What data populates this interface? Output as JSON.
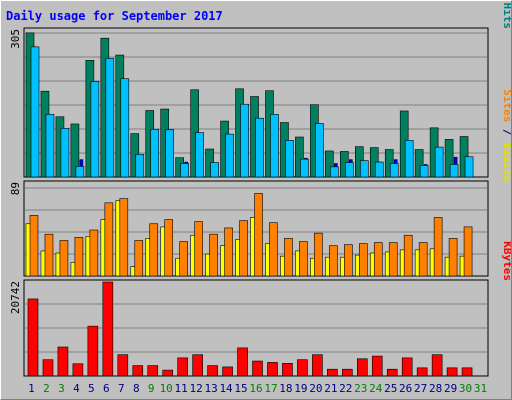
{
  "chart_data": {
    "type": "bar",
    "title": "Daily usage for September 2017",
    "days": [
      "1",
      "2",
      "3",
      "4",
      "5",
      "6",
      "7",
      "8",
      "9",
      "10",
      "11",
      "12",
      "13",
      "14",
      "15",
      "16",
      "17",
      "18",
      "19",
      "20",
      "21",
      "22",
      "23",
      "24",
      "25",
      "26",
      "27",
      "28",
      "29",
      "30",
      "31"
    ],
    "weekend_days": [
      2,
      3,
      9,
      10,
      16,
      17,
      23,
      24,
      30,
      31
    ],
    "panels": [
      {
        "scale_label": "305",
        "right_label": [
          "Pages",
          " / ",
          "Files",
          " / ",
          "Hits"
        ],
        "right_label_colors": [
          "#00a0e0",
          "#000080",
          "#0000ff",
          "#000080",
          "#008080"
        ],
        "ymax": 305,
        "series": [
          {
            "name": "Hits",
            "color": "#008060",
            "values": [
              299,
              178,
              125,
              110,
              242,
              288,
              253,
              90,
              138,
              141,
              40,
              181,
              58,
              116,
              183,
              167,
              179,
              113,
              83,
              150,
              54,
              53,
              63,
              61,
              57,
              137,
              57,
              102,
              78,
              84,
              0
            ]
          },
          {
            "name": "Files",
            "color": "#0000ff",
            "values": [
              143,
              61,
              68,
              36,
              91,
              176,
              51,
              41,
              45,
              43,
              31,
              41,
              28,
              33,
              44,
              43,
              41,
              40,
              39,
              40,
              28,
              36,
              33,
              31,
              36,
              39,
              26,
              33,
              41,
              34,
              0
            ]
          },
          {
            "name": "Pages",
            "color": "#00c0ff",
            "values": [
              270,
              130,
              101,
              22,
              198,
              246,
              204,
              47,
              99,
              98,
              28,
              92,
              30,
              89,
              151,
              122,
              130,
              76,
              37,
              111,
              21,
              30,
              34,
              31,
              28,
              76,
              24,
              62,
              26,
              42,
              0
            ]
          }
        ]
      },
      {
        "scale_label": "89",
        "right_label": [
          "Sites",
          " / ",
          "Visits"
        ],
        "right_label_colors": [
          "#ff8000",
          "#000080",
          "#e0e000"
        ],
        "ymax": 89,
        "series": [
          {
            "name": "Visits",
            "color": "#ffff00",
            "values": [
              50,
              24,
              22,
              13,
              38,
              54,
              72,
              9,
              36,
              47,
              17,
              39,
              21,
              29,
              35,
              56,
              31,
              19,
              24,
              17,
              18,
              18,
              20,
              22,
              23,
              25,
              25,
              26,
              18,
              19,
              0
            ]
          },
          {
            "name": "Sites",
            "color": "#ff8000",
            "values": [
              58,
              40,
              34,
              37,
              44,
              70,
              74,
              34,
              50,
              54,
              33,
              52,
              40,
              46,
              53,
              79,
              51,
              36,
              33,
              41,
              29,
              30,
              31,
              32,
              32,
              39,
              32,
              56,
              36,
              47,
              0
            ]
          }
        ]
      },
      {
        "scale_label": "20742",
        "right_label": [
          "KBytes"
        ],
        "right_label_colors": [
          "#ff0000"
        ],
        "ymax": 20742,
        "series": [
          {
            "name": "KBytes",
            "color": "#ff0000",
            "values": [
              17000,
              3600,
              6400,
              2700,
              11000,
              20742,
              4700,
              2300,
              2300,
              1300,
              4000,
              4700,
              2300,
              2000,
              6200,
              3300,
              3000,
              2800,
              3600,
              4700,
              1500,
              1500,
              3800,
              4400,
              1500,
              4000,
              1800,
              4700,
              1800,
              1800,
              0
            ]
          }
        ]
      }
    ],
    "colors": {
      "background": "#c0c0c0",
      "title": "#0000ff",
      "day_normal": "#000080",
      "day_weekend": "#008000",
      "gridline": "#808080"
    }
  }
}
